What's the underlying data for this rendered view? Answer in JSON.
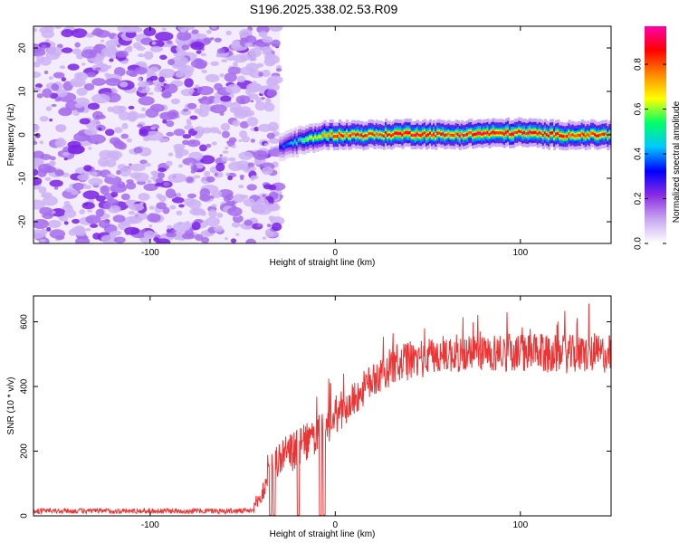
{
  "title": "S196.2025.338.02.53.R09",
  "chart_data": [
    {
      "type": "heatmap",
      "title": "S196.2025.338.02.53.R09",
      "xlabel": "Height of straight line (km)",
      "ylabel": "Frequency (Hz)",
      "xlim": [
        -163,
        149
      ],
      "ylim": [
        -25,
        25
      ],
      "xticks": [
        -100,
        0,
        100
      ],
      "yticks": [
        -20,
        -10,
        0,
        10,
        20
      ],
      "colorbar": {
        "label": "Normalized spectral amplitude",
        "range": [
          0.0,
          0.97
        ],
        "ticks": [
          0.0,
          0.2,
          0.4,
          0.6,
          0.8
        ],
        "tick_labels": [
          "0.0",
          "0.2",
          "0.4",
          "0.6",
          "0.8"
        ],
        "colormap": [
          "#ffffff",
          "#c8a8f0",
          "#8a2be2",
          "#0000ff",
          "#00c8ff",
          "#00ff66",
          "#ffff00",
          "#ff8800",
          "#ff0000",
          "#ff00aa"
        ]
      },
      "noise_region_x": [
        -163,
        -30
      ],
      "noise_amplitude_range": [
        0.0,
        0.15
      ],
      "carrier": {
        "x_start": -30,
        "x_end": 149,
        "x": [
          -30,
          -25,
          -20,
          -15,
          -10,
          -5,
          0,
          10,
          20,
          40,
          60,
          80,
          100,
          120,
          149
        ],
        "frequency_hz": [
          -3,
          -2,
          -1.5,
          -1,
          -0.5,
          0,
          0,
          0,
          0,
          0.3,
          0,
          0.3,
          0.5,
          0,
          0
        ],
        "peak_amplitude": [
          0.35,
          0.45,
          0.55,
          0.65,
          0.7,
          0.8,
          0.85,
          0.9,
          0.9,
          0.95,
          0.9,
          0.95,
          0.95,
          0.9,
          0.9
        ]
      }
    },
    {
      "type": "line",
      "xlabel": "Height of straight line (km)",
      "ylabel": "SNR (10 * v/v)",
      "xlim": [
        -163,
        149
      ],
      "ylim": [
        0,
        680
      ],
      "xticks": [
        -100,
        0,
        100
      ],
      "yticks": [
        0,
        200,
        400,
        600
      ],
      "line_color": "#ee3333",
      "series": [
        {
          "name": "SNR",
          "x": [
            -163,
            -120,
            -80,
            -45,
            -40,
            -35,
            -30,
            -25,
            -20,
            -15,
            -10,
            -5,
            0,
            5,
            10,
            15,
            20,
            25,
            30,
            40,
            50,
            60,
            80,
            100,
            120,
            149
          ],
          "y": [
            15,
            15,
            15,
            15,
            60,
            140,
            180,
            190,
            210,
            230,
            250,
            270,
            300,
            330,
            360,
            390,
            420,
            440,
            460,
            480,
            490,
            500,
            505,
            505,
            500,
            500
          ],
          "fluctuation": [
            8,
            8,
            8,
            8,
            30,
            50,
            60,
            60,
            60,
            60,
            60,
            60,
            55,
            55,
            55,
            55,
            55,
            55,
            60,
            60,
            60,
            60,
            60,
            60,
            60,
            60
          ]
        }
      ],
      "dropouts_x": [
        -35,
        -33,
        -20,
        -8,
        -6
      ]
    }
  ]
}
